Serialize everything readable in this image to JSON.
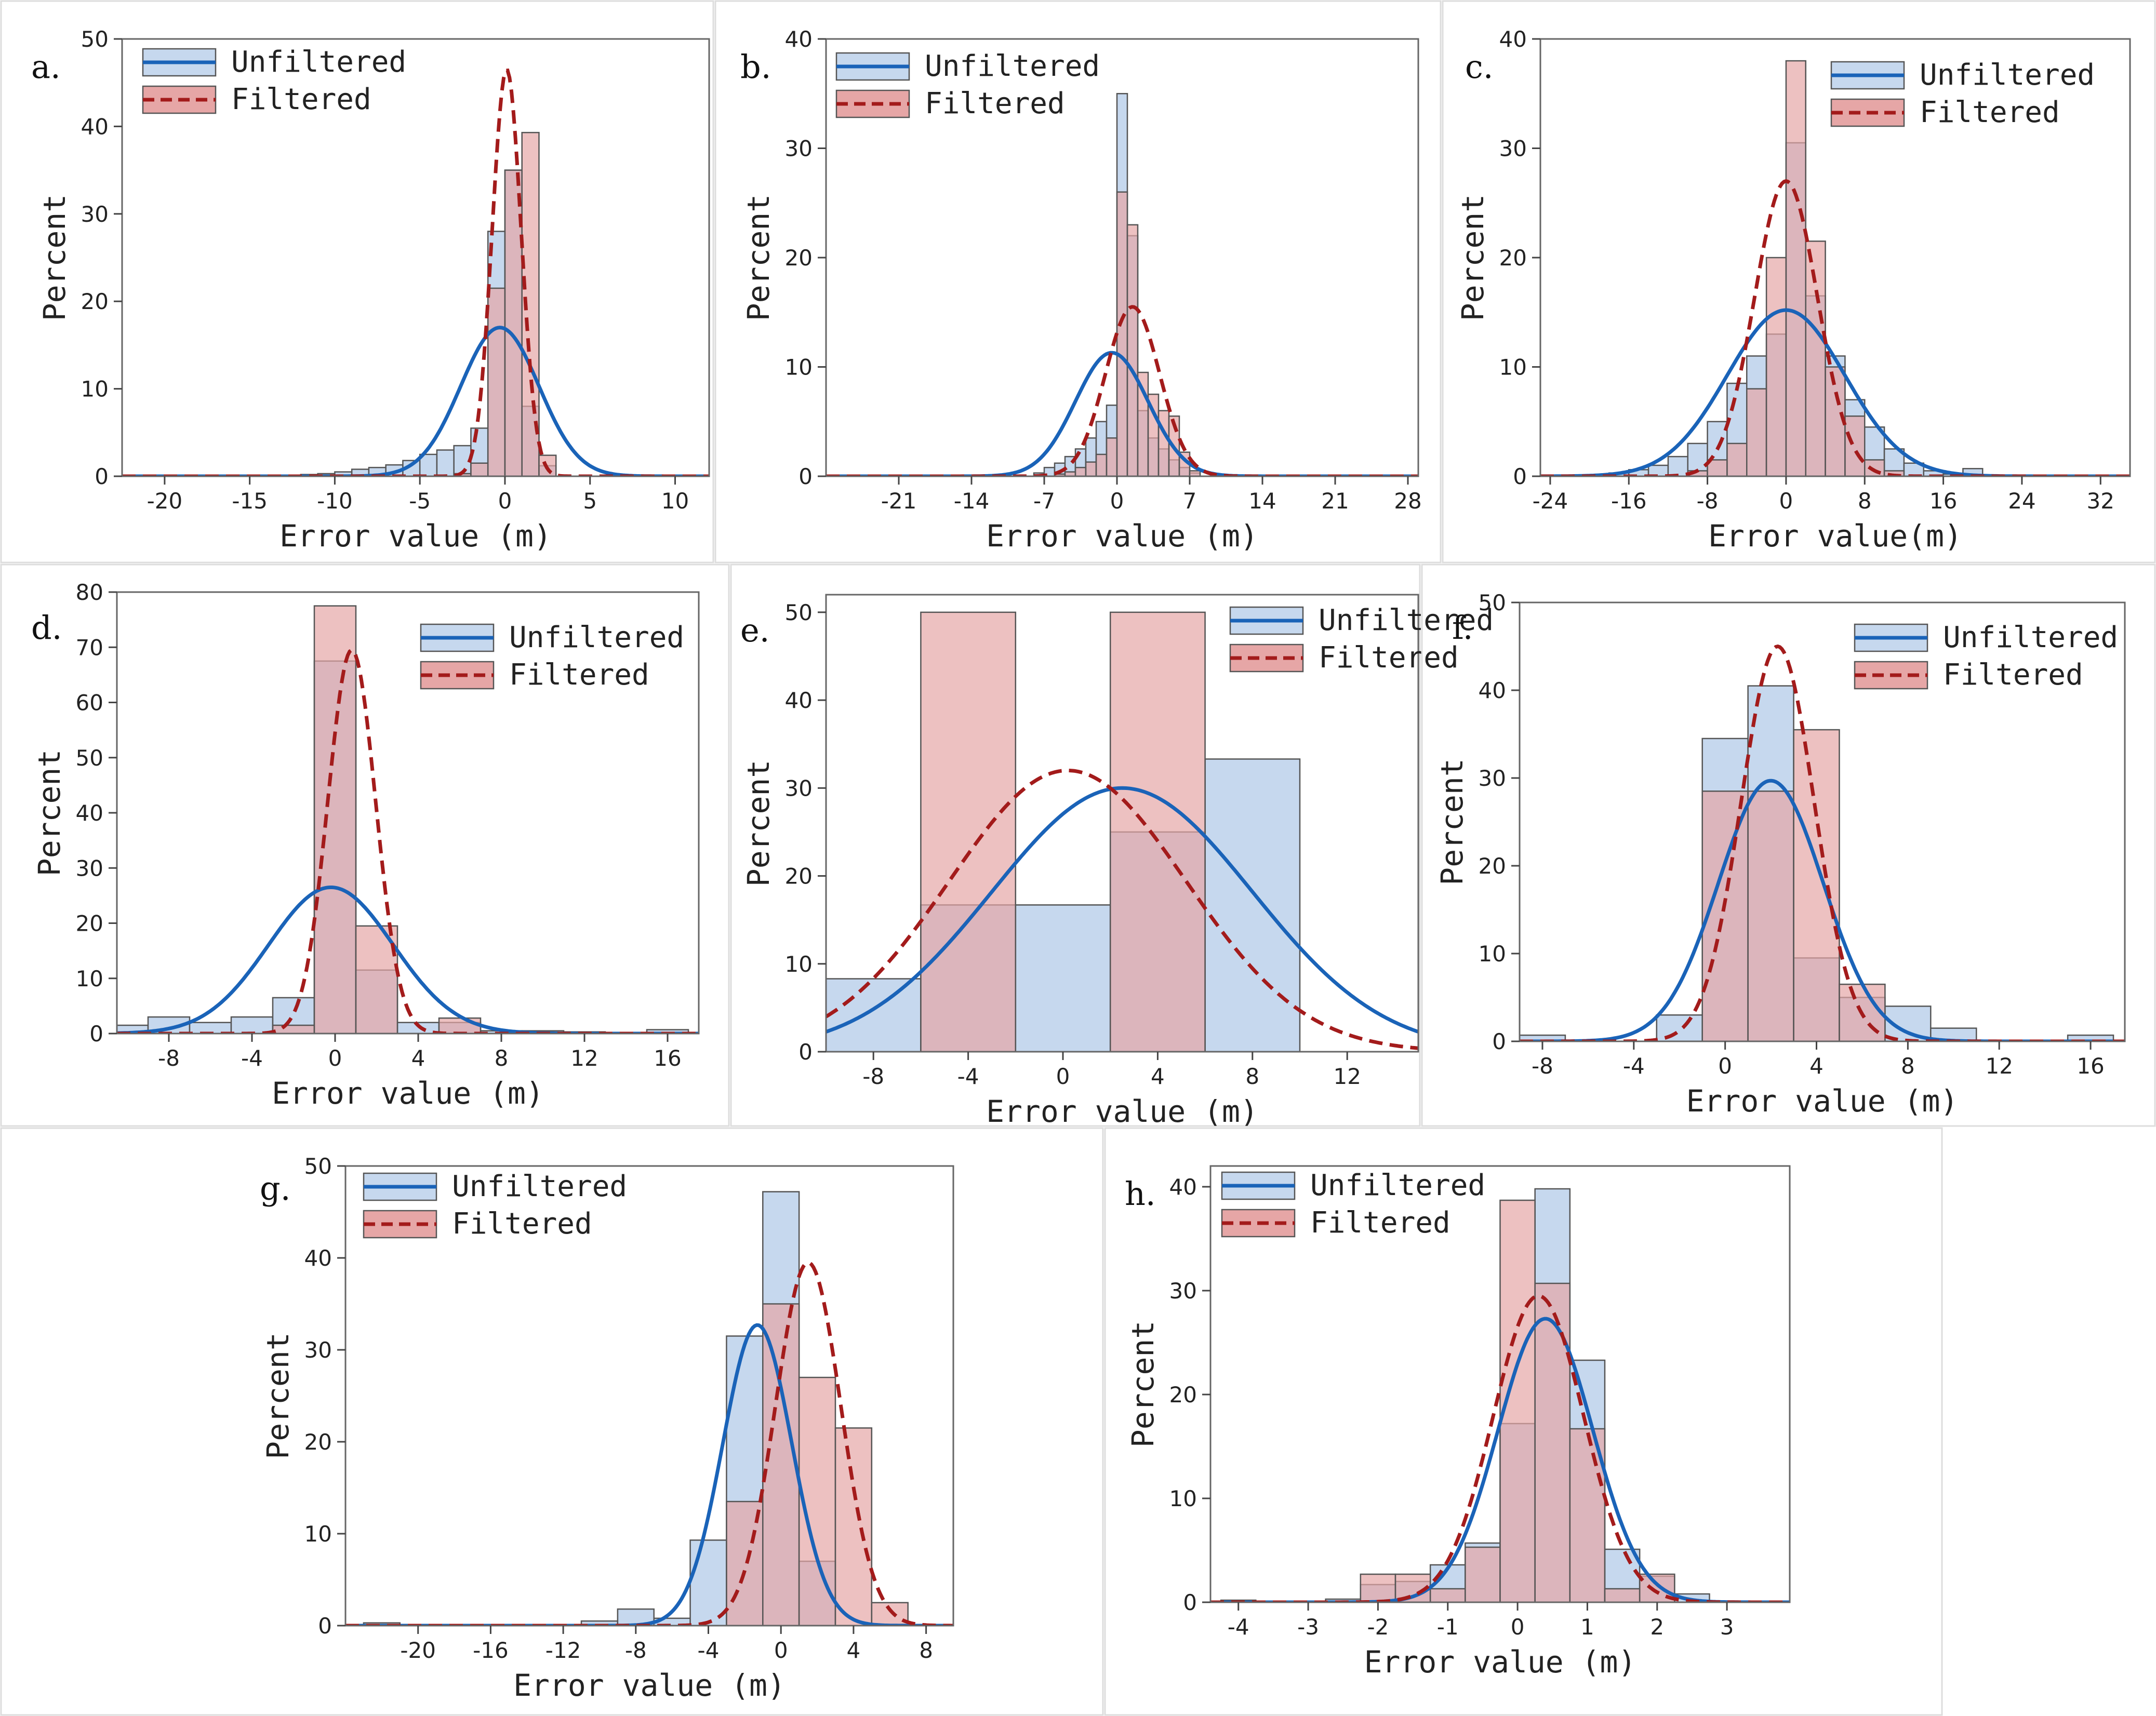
{
  "colors": {
    "unfiltered_fill": "#c6d8ee",
    "filtered_fill": "#e6a6a6",
    "overlap_fill": "#c49aa6",
    "unfiltered_line": "#1a63b8",
    "filtered_line": "#a31b1b",
    "frame": "#666666"
  },
  "legend": {
    "unfiltered": "Unfiltered",
    "filtered": "Filtered"
  },
  "chart_data": [
    {
      "id": "a",
      "panel_label": "a.",
      "type": "histogram",
      "xlabel": "Error value (m)",
      "ylabel": "Percent",
      "xlim": [
        -22.5,
        12
      ],
      "ylim": [
        0,
        50
      ],
      "xticks": [
        -20,
        -15,
        -10,
        -5,
        0,
        5,
        10
      ],
      "yticks": [
        0,
        10,
        20,
        30,
        40,
        50
      ],
      "bin_edges": [
        -12,
        -11,
        -10,
        -9,
        -8,
        -7,
        -6,
        -5,
        -4,
        -3,
        -2,
        -1,
        0,
        1,
        2,
        3
      ],
      "series": [
        {
          "name": "Unfiltered",
          "values": [
            0.2,
            0.3,
            0.5,
            0.8,
            1.0,
            1.3,
            1.8,
            2.5,
            3.0,
            3.5,
            5.5,
            28,
            35,
            8,
            1.2
          ]
        },
        {
          "name": "Filtered",
          "values": [
            0,
            0,
            0,
            0,
            0,
            0,
            0,
            0,
            0,
            0.3,
            1.5,
            21.5,
            35,
            39.3,
            2.4
          ]
        }
      ],
      "curves": [
        {
          "name": "Unfiltered",
          "mu": -0.3,
          "sigma": 2.3,
          "peak": 17
        },
        {
          "name": "Filtered",
          "mu": 0.1,
          "sigma": 0.85,
          "peak": 46.5
        }
      ]
    },
    {
      "id": "b",
      "panel_label": "b.",
      "type": "histogram",
      "xlabel": "Error value (m)",
      "ylabel": "Percent",
      "xlim": [
        -28,
        29
      ],
      "ylim": [
        0,
        40
      ],
      "xticks": [
        -21,
        -14,
        -7,
        0,
        7,
        14,
        21,
        28
      ],
      "yticks": [
        0,
        10,
        20,
        30,
        40
      ],
      "bin_edges": [
        -8,
        -7,
        -6,
        -5,
        -4,
        -3,
        -2,
        -1,
        0,
        1,
        2,
        3,
        4,
        5,
        6,
        7,
        8
      ],
      "series": [
        {
          "name": "Unfiltered",
          "values": [
            0.3,
            0.8,
            1.2,
            1.8,
            2.5,
            3.5,
            5.0,
            6.5,
            35,
            22,
            6,
            3.5,
            2.5,
            1.5,
            0.8,
            0.3
          ]
        },
        {
          "name": "Filtered",
          "values": [
            0,
            0,
            0.2,
            0.4,
            0.8,
            1.3,
            2.0,
            3.5,
            26,
            23,
            9.5,
            7.5,
            6,
            5.5,
            2.2,
            0.5
          ]
        }
      ],
      "curves": [
        {
          "name": "Unfiltered",
          "mu": -0.5,
          "sigma": 3.5,
          "peak": 11.3
        },
        {
          "name": "Filtered",
          "mu": 1.5,
          "sigma": 2.6,
          "peak": 15.5
        }
      ]
    },
    {
      "id": "c",
      "panel_label": "c.",
      "type": "histogram",
      "xlabel": "Error value(m)",
      "ylabel": "Percent",
      "xlim": [
        -25,
        35
      ],
      "ylim": [
        0,
        40
      ],
      "xticks": [
        -24,
        -16,
        -8,
        0,
        8,
        16,
        24,
        32
      ],
      "yticks": [
        0,
        10,
        20,
        30,
        40
      ],
      "bin_edges": [
        -18,
        -16,
        -14,
        -12,
        -10,
        -8,
        -6,
        -4,
        -2,
        0,
        2,
        4,
        6,
        8,
        10,
        12,
        14,
        16,
        18,
        20
      ],
      "series": [
        {
          "name": "Unfiltered",
          "values": [
            0.3,
            0.6,
            1.0,
            1.8,
            3.0,
            5.0,
            8.5,
            11,
            13,
            30.5,
            16.5,
            11,
            7,
            4.5,
            2.5,
            1.2,
            0.5,
            0.2,
            0.7
          ]
        },
        {
          "name": "Filtered",
          "values": [
            0,
            0,
            0,
            0,
            0.5,
            1.5,
            3,
            8,
            20,
            38,
            21.5,
            10,
            5.5,
            1.5,
            0.5,
            0,
            0,
            0,
            0
          ]
        }
      ],
      "curves": [
        {
          "name": "Unfiltered",
          "mu": 0,
          "sigma": 6.0,
          "peak": 15.2
        },
        {
          "name": "Filtered",
          "mu": 0,
          "sigma": 3.2,
          "peak": 27
        }
      ]
    },
    {
      "id": "d",
      "panel_label": "d.",
      "type": "histogram",
      "xlabel": "Error value (m)",
      "ylabel": "Percent",
      "xlim": [
        -10.5,
        17.5
      ],
      "ylim": [
        0,
        80
      ],
      "xticks": [
        -8,
        -4,
        0,
        4,
        8,
        12,
        16
      ],
      "yticks": [
        0,
        10,
        20,
        30,
        40,
        50,
        60,
        70,
        80
      ],
      "bin_edges": [
        -11,
        -9,
        -7,
        -5,
        -3,
        -1,
        1,
        3,
        5,
        7,
        9,
        11,
        13,
        15,
        17
      ],
      "series": [
        {
          "name": "Unfiltered",
          "values": [
            1.5,
            3.0,
            2.0,
            3.0,
            6.5,
            67.5,
            11.5,
            2.0,
            2.0,
            0.5,
            0.5,
            0.3,
            0,
            0.7
          ]
        },
        {
          "name": "Filtered",
          "values": [
            0,
            0,
            0,
            0,
            1.5,
            77.5,
            19.5,
            0,
            2.8,
            0,
            0,
            0,
            0,
            0
          ]
        }
      ],
      "curves": [
        {
          "name": "Unfiltered",
          "mu": -0.2,
          "sigma": 3.0,
          "peak": 26.5
        },
        {
          "name": "Filtered",
          "mu": 0.8,
          "sigma": 1.15,
          "peak": 69.5
        }
      ]
    },
    {
      "id": "e",
      "panel_label": "e.",
      "type": "histogram",
      "xlabel": "Error value (m)",
      "ylabel": "Percent",
      "xlim": [
        -10,
        15
      ],
      "ylim": [
        0,
        52
      ],
      "xticks": [
        -8,
        -4,
        0,
        4,
        8,
        12
      ],
      "yticks": [
        0,
        10,
        20,
        30,
        40,
        50
      ],
      "bin_edges": [
        -10,
        -6,
        -2,
        2,
        6,
        10
      ],
      "series": [
        {
          "name": "Unfiltered",
          "values": [
            8.3,
            16.7,
            16.7,
            25,
            33.3
          ]
        },
        {
          "name": "Filtered",
          "values": [
            0,
            50,
            0,
            50,
            0
          ]
        }
      ],
      "curves": [
        {
          "name": "Unfiltered",
          "mu": 2.5,
          "sigma": 5.5,
          "peak": 30
        },
        {
          "name": "Filtered",
          "mu": 0.2,
          "sigma": 5.0,
          "peak": 32
        }
      ]
    },
    {
      "id": "f",
      "panel_label": "f.",
      "type": "histogram",
      "xlabel": "Error value (m)",
      "ylabel": "Percent",
      "xlim": [
        -9,
        17.5
      ],
      "ylim": [
        0,
        50
      ],
      "xticks": [
        -8,
        -4,
        0,
        4,
        8,
        12,
        16
      ],
      "yticks": [
        0,
        10,
        20,
        30,
        40,
        50
      ],
      "bin_edges": [
        -9,
        -7,
        -5,
        -3,
        -1,
        1,
        3,
        5,
        7,
        9,
        11,
        13,
        15,
        17
      ],
      "series": [
        {
          "name": "Unfiltered",
          "values": [
            0.7,
            0,
            0,
            3.0,
            34.5,
            40.5,
            9.5,
            5.0,
            4.0,
            1.5,
            0,
            0,
            0.7
          ]
        },
        {
          "name": "Filtered",
          "values": [
            0,
            0,
            0,
            0,
            28.5,
            28.5,
            35.5,
            6.5,
            0,
            0,
            0,
            0,
            0
          ]
        }
      ],
      "curves": [
        {
          "name": "Unfiltered",
          "mu": 2.0,
          "sigma": 2.3,
          "peak": 29.7
        },
        {
          "name": "Filtered",
          "mu": 2.3,
          "sigma": 1.6,
          "peak": 45
        }
      ]
    },
    {
      "id": "g",
      "panel_label": "g.",
      "type": "histogram",
      "xlabel": "Error value (m)",
      "ylabel": "Percent",
      "xlim": [
        -24,
        9.5
      ],
      "ylim": [
        0,
        50
      ],
      "xticks": [
        -20,
        -16,
        -12,
        -8,
        -4,
        0,
        4,
        8
      ],
      "yticks": [
        0,
        10,
        20,
        30,
        40,
        50
      ],
      "bin_edges": [
        -23,
        -21,
        -19,
        -17,
        -15,
        -13,
        -11,
        -9,
        -7,
        -5,
        -3,
        -1,
        1,
        3,
        5,
        7
      ],
      "series": [
        {
          "name": "Unfiltered",
          "values": [
            0.3,
            0,
            0,
            0,
            0,
            0,
            0.5,
            1.8,
            0.8,
            9.3,
            31.5,
            47.2,
            7,
            0,
            0
          ]
        },
        {
          "name": "Filtered",
          "values": [
            0,
            0,
            0,
            0,
            0,
            0,
            0,
            0,
            0,
            0,
            13.5,
            35,
            27,
            21.5,
            2.5
          ]
        }
      ],
      "curves": [
        {
          "name": "Unfiltered",
          "mu": -1.3,
          "sigma": 1.9,
          "peak": 32.7
        },
        {
          "name": "Filtered",
          "mu": 1.5,
          "sigma": 1.8,
          "peak": 39.5
        }
      ]
    },
    {
      "id": "h",
      "panel_label": "h.",
      "type": "histogram",
      "xlabel": "Error value (m)",
      "ylabel": "Percent",
      "xlim": [
        -4.4,
        3.9
      ],
      "ylim": [
        0,
        42
      ],
      "xticks": [
        -4,
        -3,
        -2,
        -1,
        0,
        1,
        2,
        3
      ],
      "yticks": [
        0,
        10,
        20,
        30,
        40
      ],
      "bin_edges": [
        -4.25,
        -3.75,
        -3.25,
        -2.75,
        -2.25,
        -1.75,
        -1.25,
        -0.75,
        -0.25,
        0.25,
        0.75,
        1.25,
        1.75,
        2.25,
        2.75,
        3.25
      ],
      "series": [
        {
          "name": "Unfiltered",
          "values": [
            0.2,
            0,
            0,
            0.3,
            1.7,
            2.0,
            3.6,
            5.7,
            17.2,
            39.8,
            23.3,
            5.1,
            2.5,
            0.8,
            0
          ]
        },
        {
          "name": "Filtered",
          "values": [
            0,
            0,
            0,
            0,
            2.7,
            2.7,
            1.3,
            5.3,
            38.7,
            30.7,
            16.7,
            1.3,
            2.7,
            0,
            0
          ]
        }
      ],
      "curves": [
        {
          "name": "Unfiltered",
          "mu": 0.4,
          "sigma": 0.68,
          "peak": 27.3
        },
        {
          "name": "Filtered",
          "mu": 0.3,
          "sigma": 0.65,
          "peak": 29.5
        }
      ]
    }
  ]
}
